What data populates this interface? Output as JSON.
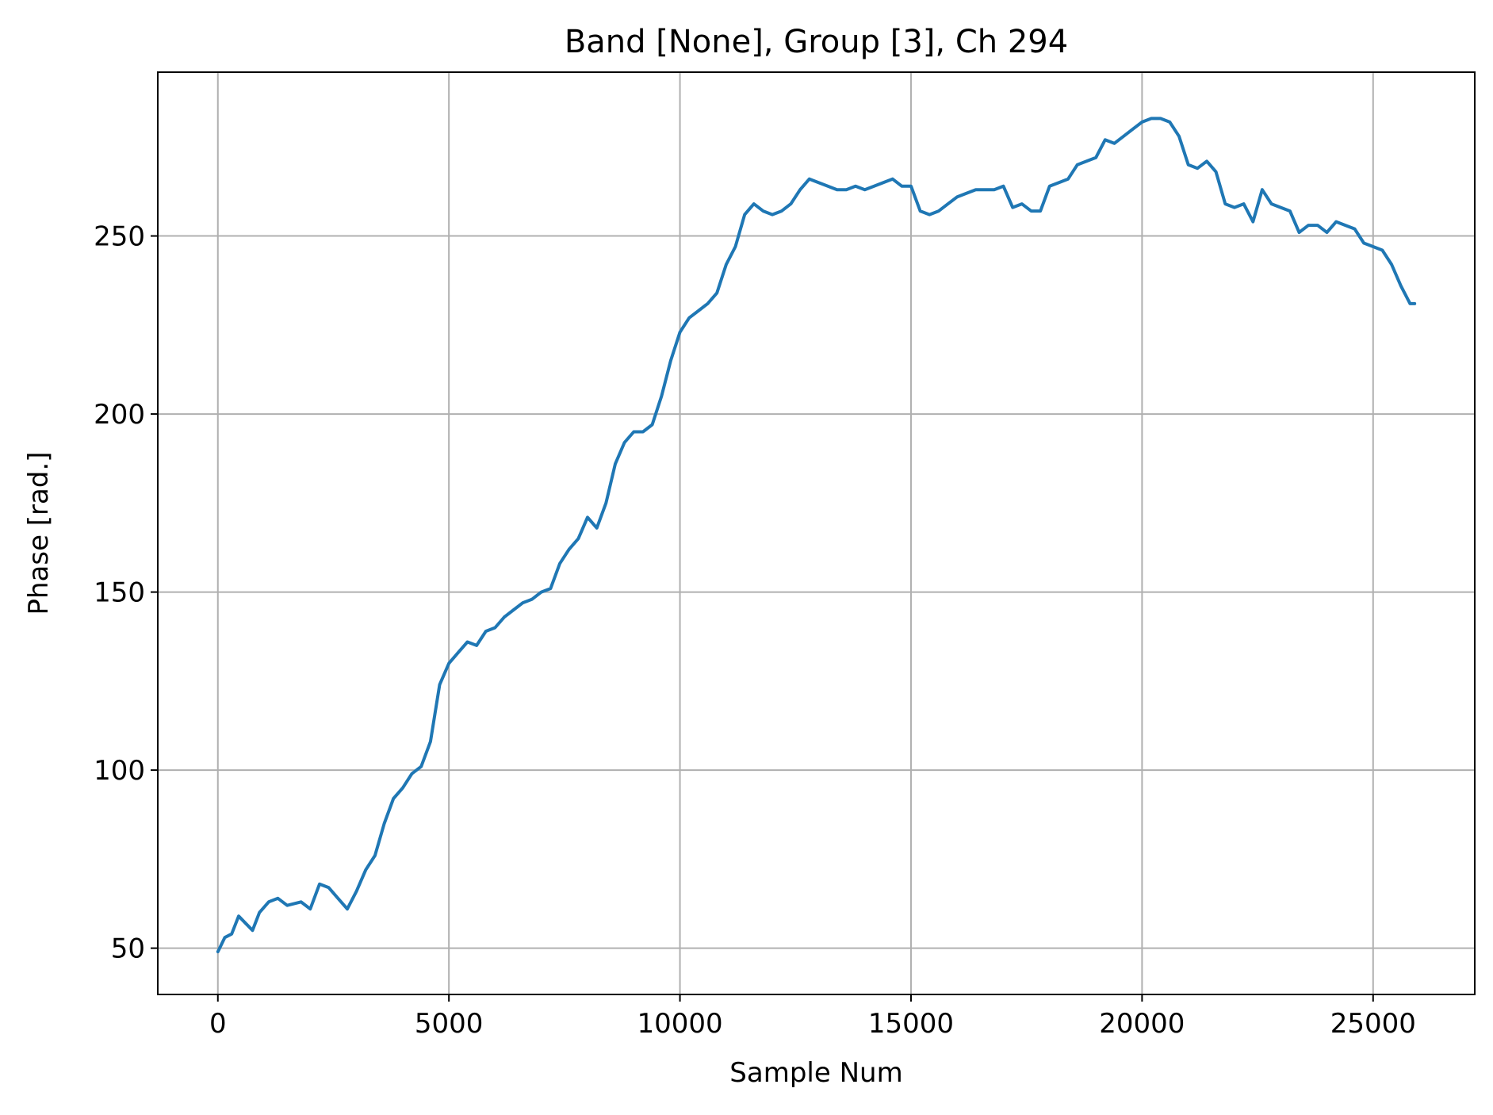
{
  "chart_data": {
    "type": "line",
    "title": "Band [None], Group [3], Ch 294",
    "xlabel": "Sample Num",
    "ylabel": "Phase [rad.]",
    "xlim": [
      -1300,
      27200
    ],
    "ylim": [
      37,
      296
    ],
    "xticks": [
      0,
      5000,
      10000,
      15000,
      20000,
      25000
    ],
    "yticks": [
      50,
      100,
      150,
      200,
      250
    ],
    "grid": true,
    "color": "#1f77b4",
    "series": [
      {
        "values": [
          [
            0,
            49
          ],
          [
            150,
            53
          ],
          [
            300,
            54
          ],
          [
            450,
            59
          ],
          [
            600,
            57
          ],
          [
            750,
            55
          ],
          [
            900,
            60
          ],
          [
            1100,
            63
          ],
          [
            1300,
            64
          ],
          [
            1500,
            62
          ],
          [
            1800,
            63
          ],
          [
            2000,
            61
          ],
          [
            2200,
            68
          ],
          [
            2400,
            67
          ],
          [
            2600,
            64
          ],
          [
            2800,
            61
          ],
          [
            3000,
            66
          ],
          [
            3200,
            72
          ],
          [
            3400,
            76
          ],
          [
            3600,
            85
          ],
          [
            3800,
            92
          ],
          [
            4000,
            95
          ],
          [
            4200,
            99
          ],
          [
            4400,
            101
          ],
          [
            4600,
            108
          ],
          [
            4800,
            124
          ],
          [
            5000,
            130
          ],
          [
            5200,
            133
          ],
          [
            5400,
            136
          ],
          [
            5600,
            135
          ],
          [
            5800,
            139
          ],
          [
            6000,
            140
          ],
          [
            6200,
            143
          ],
          [
            6400,
            145
          ],
          [
            6600,
            147
          ],
          [
            6800,
            148
          ],
          [
            7000,
            150
          ],
          [
            7200,
            151
          ],
          [
            7400,
            158
          ],
          [
            7600,
            162
          ],
          [
            7800,
            165
          ],
          [
            8000,
            171
          ],
          [
            8200,
            168
          ],
          [
            8400,
            175
          ],
          [
            8600,
            186
          ],
          [
            8800,
            192
          ],
          [
            9000,
            195
          ],
          [
            9200,
            195
          ],
          [
            9400,
            197
          ],
          [
            9600,
            205
          ],
          [
            9800,
            215
          ],
          [
            10000,
            223
          ],
          [
            10200,
            227
          ],
          [
            10400,
            229
          ],
          [
            10600,
            231
          ],
          [
            10800,
            234
          ],
          [
            11000,
            242
          ],
          [
            11200,
            247
          ],
          [
            11400,
            256
          ],
          [
            11600,
            259
          ],
          [
            11800,
            257
          ],
          [
            12000,
            256
          ],
          [
            12200,
            257
          ],
          [
            12400,
            259
          ],
          [
            12600,
            263
          ],
          [
            12800,
            266
          ],
          [
            13000,
            265
          ],
          [
            13200,
            264
          ],
          [
            13400,
            263
          ],
          [
            13600,
            263
          ],
          [
            13800,
            264
          ],
          [
            14000,
            263
          ],
          [
            14200,
            264
          ],
          [
            14400,
            265
          ],
          [
            14600,
            266
          ],
          [
            14800,
            264
          ],
          [
            15000,
            264
          ],
          [
            15200,
            257
          ],
          [
            15400,
            256
          ],
          [
            15600,
            257
          ],
          [
            15800,
            259
          ],
          [
            16000,
            261
          ],
          [
            16200,
            262
          ],
          [
            16400,
            263
          ],
          [
            16600,
            263
          ],
          [
            16800,
            263
          ],
          [
            17000,
            264
          ],
          [
            17200,
            258
          ],
          [
            17400,
            259
          ],
          [
            17600,
            257
          ],
          [
            17800,
            257
          ],
          [
            18000,
            264
          ],
          [
            18200,
            265
          ],
          [
            18400,
            266
          ],
          [
            18600,
            270
          ],
          [
            18800,
            271
          ],
          [
            19000,
            272
          ],
          [
            19200,
            277
          ],
          [
            19400,
            276
          ],
          [
            19600,
            278
          ],
          [
            19800,
            280
          ],
          [
            20000,
            282
          ],
          [
            20200,
            283
          ],
          [
            20400,
            283
          ],
          [
            20600,
            282
          ],
          [
            20800,
            278
          ],
          [
            21000,
            270
          ],
          [
            21200,
            269
          ],
          [
            21400,
            271
          ],
          [
            21600,
            268
          ],
          [
            21800,
            259
          ],
          [
            22000,
            258
          ],
          [
            22200,
            259
          ],
          [
            22400,
            254
          ],
          [
            22600,
            263
          ],
          [
            22800,
            259
          ],
          [
            23000,
            258
          ],
          [
            23200,
            257
          ],
          [
            23400,
            251
          ],
          [
            23600,
            253
          ],
          [
            23800,
            253
          ],
          [
            24000,
            251
          ],
          [
            24200,
            254
          ],
          [
            24400,
            253
          ],
          [
            24600,
            252
          ],
          [
            24800,
            248
          ],
          [
            25000,
            247
          ],
          [
            25200,
            246
          ],
          [
            25400,
            242
          ],
          [
            25600,
            236
          ],
          [
            25800,
            231
          ],
          [
            25900,
            231
          ]
        ]
      }
    ]
  }
}
